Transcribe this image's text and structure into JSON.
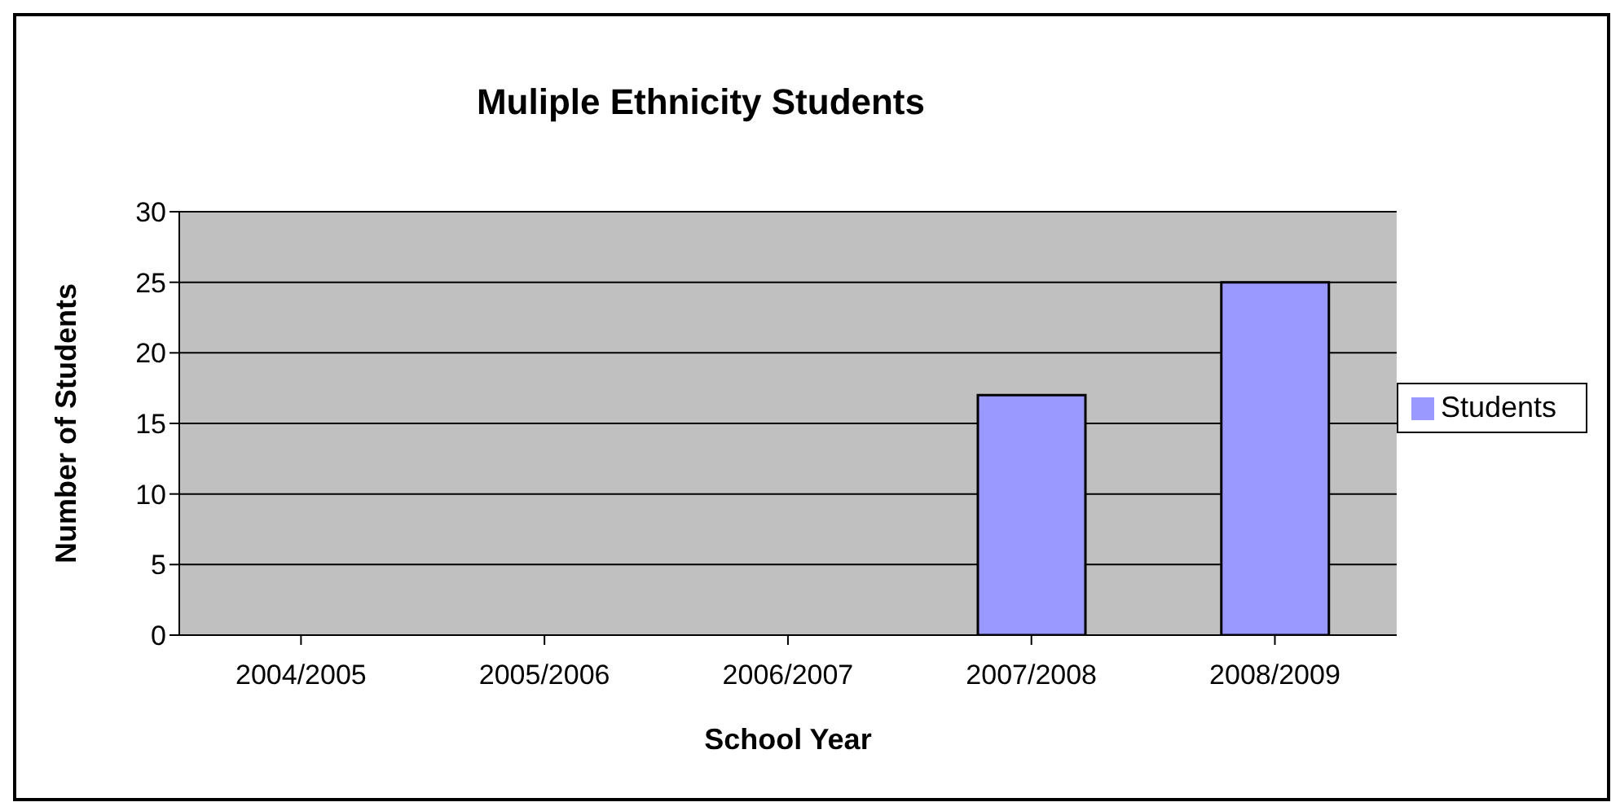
{
  "chart_data": {
    "type": "bar",
    "title": "Muliple Ethnicity Students",
    "xlabel": "School Year",
    "ylabel": "Number of Students",
    "categories": [
      "2004/2005",
      "2005/2006",
      "2006/2007",
      "2007/2008",
      "2008/2009"
    ],
    "series": [
      {
        "name": "Students",
        "color": "#9999ff",
        "values": [
          0,
          0,
          0,
          17,
          25
        ]
      }
    ],
    "ylim": [
      0,
      30
    ],
    "yticks": [
      0,
      5,
      10,
      15,
      20,
      25,
      30
    ],
    "grid": "y",
    "legend": "right"
  }
}
